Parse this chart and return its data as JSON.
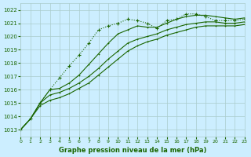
{
  "title": "Graphe pression niveau de la mer (hPa)",
  "bg_color": "#cceeff",
  "grid_color": "#aacccc",
  "line_color": "#1a6600",
  "xlim": [
    0,
    23
  ],
  "ylim": [
    1012.5,
    1022.5
  ],
  "yticks": [
    1013,
    1014,
    1015,
    1016,
    1017,
    1018,
    1019,
    1020,
    1021,
    1022
  ],
  "xticks": [
    0,
    1,
    2,
    3,
    4,
    5,
    6,
    7,
    8,
    9,
    10,
    11,
    12,
    13,
    14,
    15,
    16,
    17,
    18,
    19,
    20,
    21,
    22,
    23
  ],
  "series": [
    [
      1013.0,
      1013.8,
      1015.0,
      1016.0,
      1016.9,
      1017.8,
      1018.6,
      1019.5,
      1020.5,
      1020.8,
      1021.0,
      1021.3,
      1021.2,
      1021.0,
      1020.6,
      1021.2,
      1021.3,
      1021.7,
      1021.7,
      1021.5,
      1021.2,
      1021.2,
      1021.2,
      1021.3
    ],
    [
      1013.0,
      1013.8,
      1015.0,
      1016.0,
      1016.1,
      1016.5,
      1017.1,
      1017.9,
      1018.7,
      1019.5,
      1020.2,
      1020.5,
      1020.8,
      1020.7,
      1020.7,
      1021.0,
      1021.3,
      1021.5,
      1021.6,
      1021.6,
      1021.5,
      1021.4,
      1021.3,
      1021.4
    ],
    [
      1013.0,
      1013.8,
      1015.0,
      1015.6,
      1015.8,
      1016.1,
      1016.5,
      1017.0,
      1017.6,
      1018.3,
      1018.9,
      1019.5,
      1019.8,
      1020.0,
      1020.2,
      1020.5,
      1020.7,
      1020.9,
      1021.0,
      1021.1,
      1021.1,
      1021.0,
      1021.0,
      1021.1
    ],
    [
      1013.0,
      1013.8,
      1014.8,
      1015.2,
      1015.4,
      1015.7,
      1016.1,
      1016.5,
      1017.1,
      1017.7,
      1018.3,
      1018.9,
      1019.3,
      1019.6,
      1019.8,
      1020.1,
      1020.3,
      1020.5,
      1020.7,
      1020.8,
      1020.8,
      1020.8,
      1020.8,
      1020.9
    ]
  ]
}
